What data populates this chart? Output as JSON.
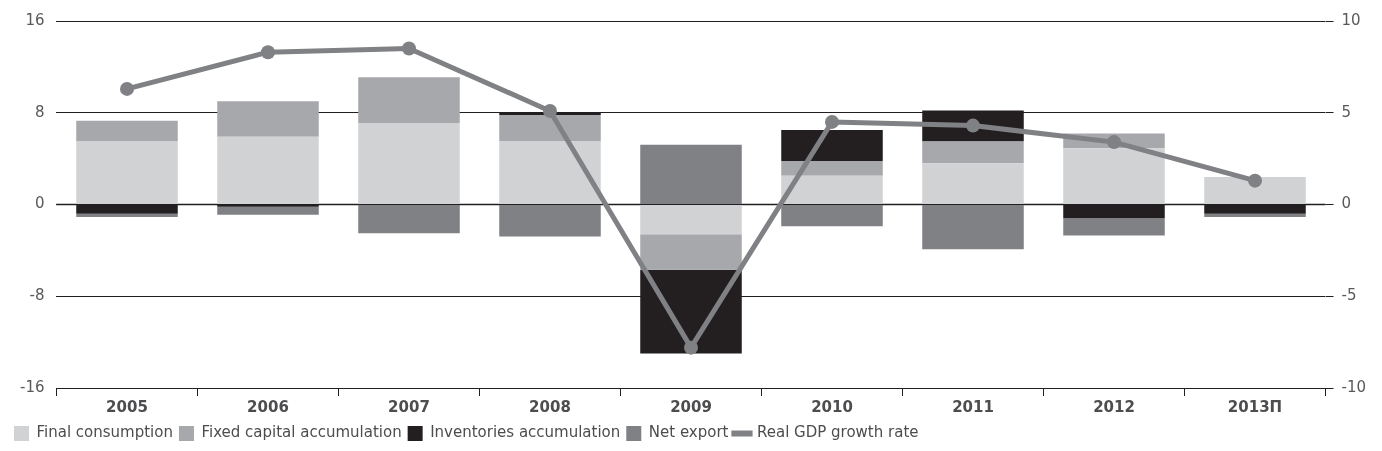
{
  "chart_data": {
    "type": "bar",
    "stacked": true,
    "categories": [
      "2005",
      "2006",
      "2007",
      "2008",
      "2009",
      "2010",
      "2011",
      "2012",
      "2013П"
    ],
    "series": [
      {
        "name": "Final consumption",
        "color": "#d1d2d4",
        "values": [
          5.5,
          5.9,
          7.1,
          5.5,
          -2.6,
          2.5,
          3.6,
          4.9,
          2.4
        ]
      },
      {
        "name": "Fixed capital accumulation",
        "color": "#a7a8ab",
        "values": [
          1.8,
          3.1,
          4.0,
          2.3,
          -3.1,
          1.3,
          1.9,
          1.3,
          null
        ]
      },
      {
        "name": "Inventories accumulation",
        "color": "#231f20",
        "values": [
          -0.8,
          -0.2,
          null,
          0.2,
          -7.3,
          2.7,
          2.7,
          -1.2,
          -0.8
        ]
      },
      {
        "name": "Net export",
        "color": "#808184",
        "values": [
          -0.3,
          -0.7,
          -2.5,
          -2.8,
          5.2,
          -1.9,
          -3.9,
          -1.5,
          -0.3
        ]
      },
      {
        "name": "Real GDP growth rate",
        "type": "line",
        "axis": "y2",
        "color": "#808184",
        "marker": "circle",
        "values": [
          6.3,
          8.3,
          8.5,
          5.1,
          -7.8,
          4.5,
          4.3,
          3.4,
          1.3
        ]
      }
    ],
    "ylim": [
      -16,
      16
    ],
    "yticks": [
      -16,
      -8,
      0,
      8,
      16
    ],
    "y2lim": [
      -10,
      10
    ],
    "y2ticks": [
      -10,
      -5,
      0,
      5,
      10
    ],
    "grid": "y",
    "legend": "bottom left"
  }
}
